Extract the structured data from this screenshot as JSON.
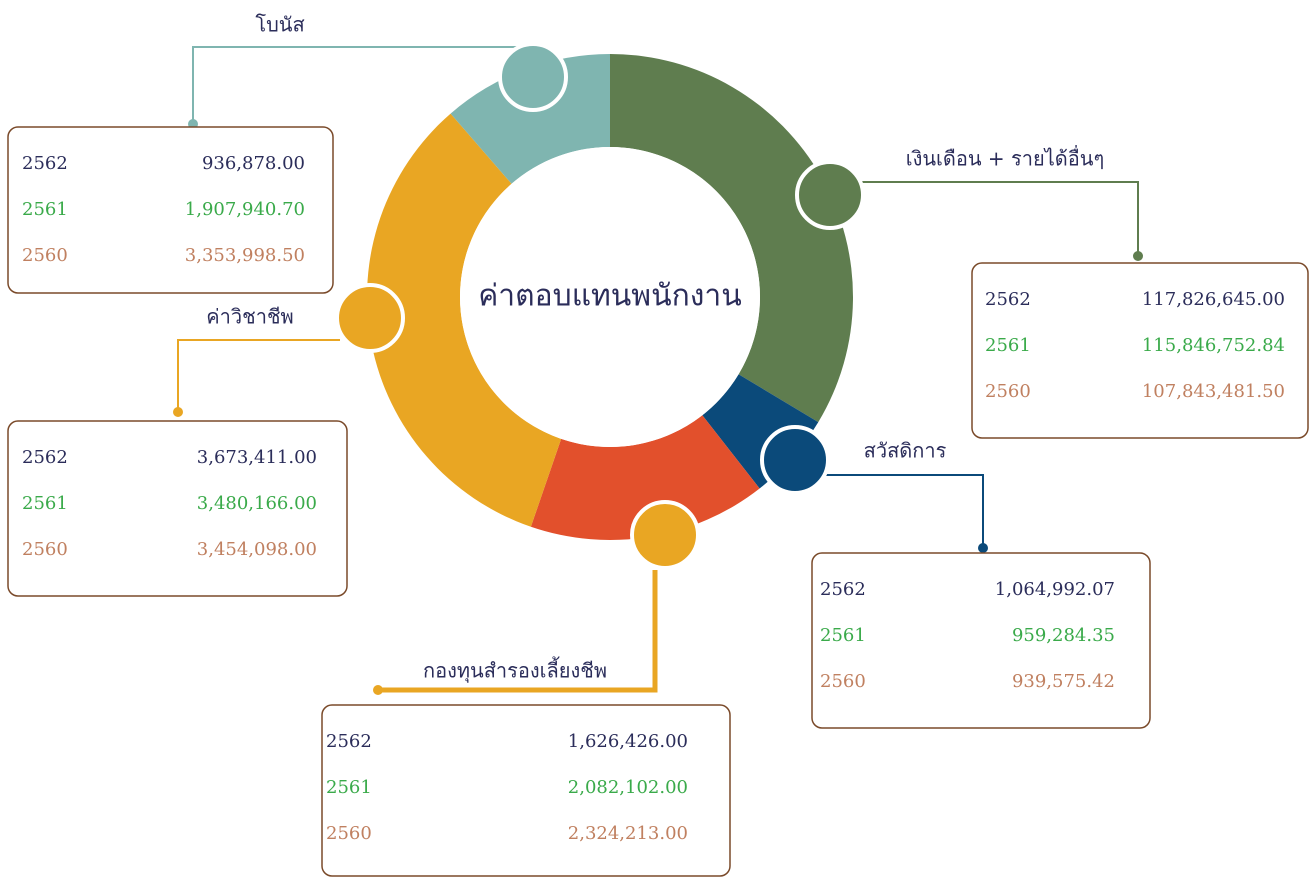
{
  "title": "ค่าตอบแทนพนักงาน",
  "groups": [
    {
      "label": "โบนัส",
      "rows": [
        {
          "year": "2562",
          "value": "936,878.00"
        },
        {
          "year": "2561",
          "value": "1,907,940.70"
        },
        {
          "year": "2560",
          "value": "3,353,998.50"
        }
      ]
    },
    {
      "label": "เงินเดือน + รายได้อื่นๆ",
      "rows": [
        {
          "year": "2562",
          "value": "117,826,645.00"
        },
        {
          "year": "2561",
          "value": "115,846,752.84"
        },
        {
          "year": "2560",
          "value": "107,843,481.50"
        }
      ]
    },
    {
      "label": "ค่าวิชาชีพ",
      "rows": [
        {
          "year": "2562",
          "value": "3,673,411.00"
        },
        {
          "year": "2561",
          "value": "3,480,166.00"
        },
        {
          "year": "2560",
          "value": "3,454,098.00"
        }
      ]
    },
    {
      "label": "สวัสดิการ",
      "rows": [
        {
          "year": "2562",
          "value": "1,064,992.07"
        },
        {
          "year": "2561",
          "value": "959,284.35"
        },
        {
          "year": "2560",
          "value": "939,575.42"
        }
      ]
    },
    {
      "label": "กองทุนสำรองเลี้ยงชีพ",
      "rows": [
        {
          "year": "2562",
          "value": "1,626,426.00"
        },
        {
          "year": "2561",
          "value": "2,082,102.00"
        },
        {
          "year": "2560",
          "value": "2,324,213.00"
        }
      ]
    }
  ]
}
